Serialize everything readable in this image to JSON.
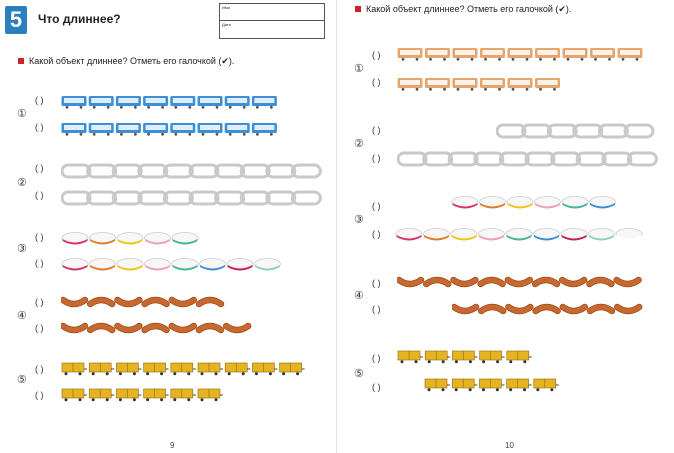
{
  "left_page": {
    "lesson_number": "5",
    "title": "Что длиннее?",
    "name_box": {
      "name_label": "Имя",
      "date_label": "Дата"
    },
    "instruction": "Какой объект длиннее? Отметь его галочкой (✔).",
    "page_number": "9",
    "tasks": [
      {
        "number": "①",
        "object": "blue-train",
        "rows": [
          {
            "paren": "(   )",
            "count": 8
          },
          {
            "paren": "(   )",
            "count": 8
          }
        ]
      },
      {
        "number": "②",
        "object": "gray-chain",
        "rows": [
          {
            "paren": "(   )",
            "count": 10
          },
          {
            "paren": "(   )",
            "count": 10
          }
        ]
      },
      {
        "number": "③",
        "object": "colored-links",
        "rows": [
          {
            "paren": "(   )",
            "count": 5
          },
          {
            "paren": "(   )",
            "count": 8
          }
        ]
      },
      {
        "number": "④",
        "object": "sausages",
        "rows": [
          {
            "paren": "(   )",
            "count": 6
          },
          {
            "paren": "(   )",
            "count": 7
          }
        ]
      },
      {
        "number": "⑤",
        "object": "yellow-wagons",
        "rows": [
          {
            "paren": "(   )",
            "count": 9
          },
          {
            "paren": "(   )",
            "count": 6
          }
        ]
      }
    ]
  },
  "right_page": {
    "instruction": "Какой объект длиннее? Отметь его галочкой (✔).",
    "page_number": "10",
    "tasks": [
      {
        "number": "①",
        "object": "orange-train",
        "rows": [
          {
            "paren": "(   )",
            "count": 9
          },
          {
            "paren": "(   )",
            "count": 6
          }
        ]
      },
      {
        "number": "②",
        "object": "gray-chain",
        "rows": [
          {
            "paren": "(   )",
            "count": 6
          },
          {
            "paren": "(   )",
            "count": 10
          }
        ]
      },
      {
        "number": "③",
        "object": "colored-links",
        "rows": [
          {
            "paren": "(   )",
            "count": 6
          },
          {
            "paren": "(   )",
            "count": 9
          }
        ]
      },
      {
        "number": "④",
        "object": "sausages",
        "rows": [
          {
            "paren": "(   )",
            "count": 9
          },
          {
            "paren": "(   )",
            "count": 7
          }
        ]
      },
      {
        "number": "⑤",
        "object": "yellow-wagons",
        "rows": [
          {
            "paren": "(   )",
            "count": 5
          },
          {
            "paren": "(   )",
            "count": 5
          }
        ]
      }
    ]
  },
  "colors": {
    "accent_red": "#cc2229",
    "badge_blue": "#2b7fbd",
    "train_blue": "#3a8fd6",
    "train_orange": "#e8a56b",
    "wagon_yellow": "#e6b422",
    "sausage": "#c8672f",
    "chain_gray": "#c9c9c9"
  }
}
